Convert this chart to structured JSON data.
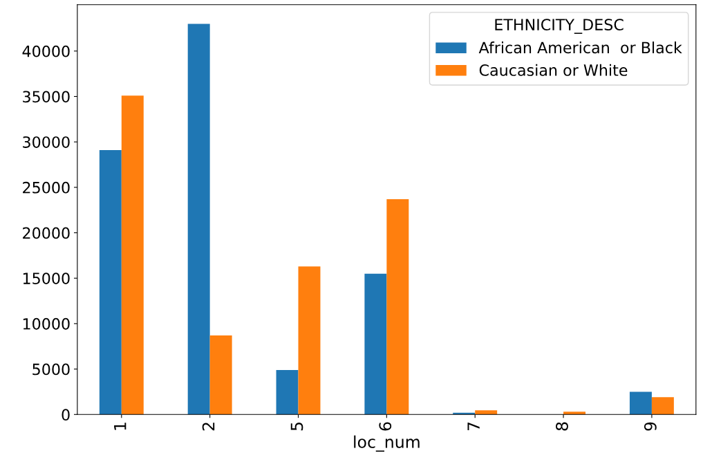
{
  "chart_data": {
    "type": "bar",
    "xlabel": "loc_num",
    "legend_title": "ETHNICITY_DESC",
    "categories": [
      "1",
      "2",
      "5",
      "6",
      "7",
      "8",
      "9"
    ],
    "series": [
      {
        "name": "African American  or Black",
        "color": "#1f77b4",
        "values": [
          29100,
          43000,
          4900,
          15500,
          200,
          0,
          2500
        ]
      },
      {
        "name": "Caucasian or White",
        "color": "#ff7f0e",
        "values": [
          35100,
          8700,
          16300,
          23700,
          450,
          300,
          1900
        ]
      }
    ],
    "ylim": [
      0,
      45100
    ],
    "yticks": [
      0,
      5000,
      10000,
      15000,
      20000,
      25000,
      30000,
      35000,
      40000
    ],
    "grid": false,
    "legend": "top right"
  }
}
